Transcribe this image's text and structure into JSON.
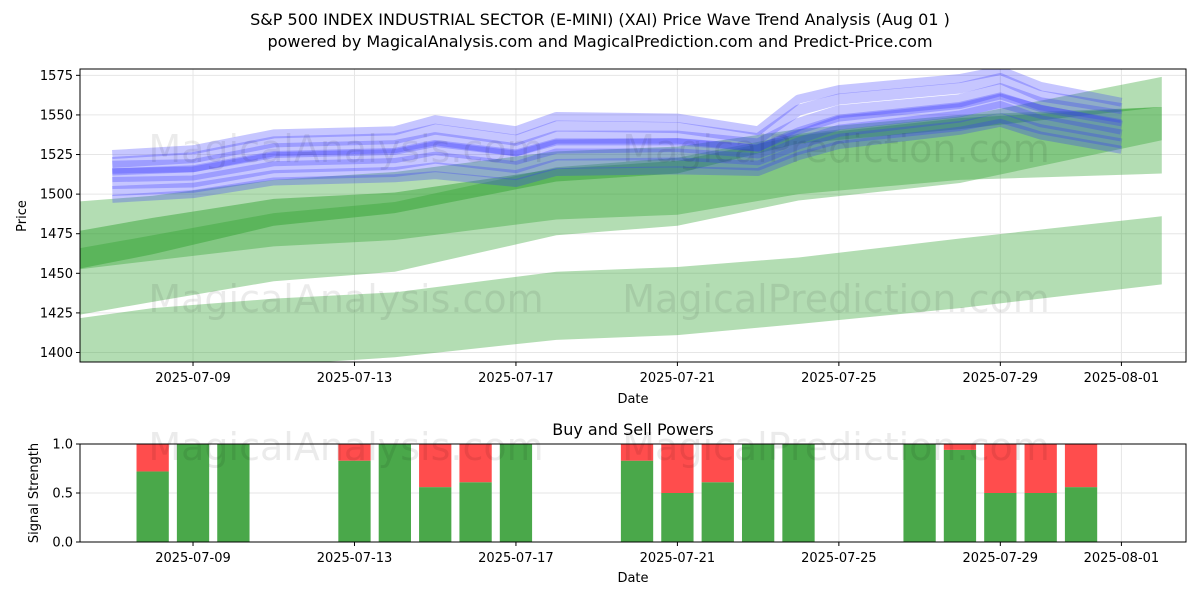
{
  "header": {
    "title_line1": "S&P 500 INDEX INDUSTRIAL SECTOR (E-MINI) (XAI) Price Wave Trend Analysis (Aug 01 )",
    "title_line2": "powered by MagicalAnalysis.com and MagicalPrediction.com and Predict-Price.com"
  },
  "watermarks": [
    "MagicalAnalysis.com",
    "MagicalPrediction.com"
  ],
  "colors": {
    "forecast_blue": "#3333ff",
    "band_green": "#2ca02c",
    "buy_green": "#4aa84a",
    "sell_red": "#ff4d4d"
  },
  "chart_data": [
    {
      "type": "area",
      "name": "price-wave",
      "xlabel": "Date",
      "ylabel": "Price",
      "xlim": [
        "2025-07-06",
        "2025-08-02"
      ],
      "ylim": [
        1394,
        1579
      ],
      "x_ticks": [
        "2025-07-09",
        "2025-07-13",
        "2025-07-17",
        "2025-07-21",
        "2025-07-25",
        "2025-07-29",
        "2025-08-01"
      ],
      "y_ticks": [
        1400,
        1425,
        1450,
        1475,
        1500,
        1525,
        1550,
        1575
      ],
      "grid": true,
      "green_bands": [
        {
          "start": "2025-07-06",
          "end": "2025-08-02",
          "x": [
            "2025-07-06",
            "2025-07-08",
            "2025-07-11",
            "2025-07-14",
            "2025-07-18",
            "2025-07-21",
            "2025-07-24",
            "2025-07-28",
            "2025-08-02"
          ],
          "lower": [
            1380,
            1386,
            1392,
            1397,
            1408,
            1411,
            1418,
            1428,
            1443
          ],
          "upper": [
            1421,
            1428,
            1434,
            1438,
            1451,
            1454,
            1460,
            1472,
            1486
          ]
        },
        {
          "start": "2025-07-06",
          "end": "2025-08-02",
          "x": [
            "2025-07-06",
            "2025-07-08",
            "2025-07-11",
            "2025-07-14",
            "2025-07-18",
            "2025-07-21",
            "2025-07-24",
            "2025-07-28",
            "2025-08-02"
          ],
          "lower": [
            1423,
            1432,
            1445,
            1451,
            1474,
            1480,
            1496,
            1507,
            1534
          ],
          "upper": [
            1465,
            1474,
            1488,
            1495,
            1517,
            1523,
            1538,
            1549,
            1574
          ]
        },
        {
          "start": "2025-07-06",
          "end": "2025-08-02",
          "x": [
            "2025-07-06",
            "2025-07-08",
            "2025-07-11",
            "2025-07-14",
            "2025-07-18",
            "2025-07-21",
            "2025-07-24",
            "2025-07-28",
            "2025-08-02"
          ],
          "lower": [
            1452,
            1458,
            1467,
            1471,
            1484,
            1487,
            1500,
            1509,
            1513
          ],
          "upper": [
            1495,
            1499,
            1509,
            1514,
            1527,
            1530,
            1541,
            1550,
            1555
          ]
        },
        {
          "start": "2025-07-06",
          "end": "2025-08-02",
          "x": [
            "2025-07-06",
            "2025-07-08",
            "2025-07-11",
            "2025-07-14",
            "2025-07-18",
            "2025-07-21",
            "2025-07-24",
            "2025-07-28",
            "2025-08-02"
          ],
          "lower": [
            1452,
            1462,
            1480,
            1488,
            1508,
            1513,
            1532,
            1541,
            1555
          ],
          "upper": [
            1476,
            1485,
            1497,
            1501,
            1516,
            1521,
            1537,
            1548,
            1555
          ]
        }
      ],
      "forecast_paths": {
        "x": [
          "2025-07-07",
          "2025-07-09",
          "2025-07-11",
          "2025-07-14",
          "2025-07-15",
          "2025-07-17",
          "2025-07-18",
          "2025-07-21",
          "2025-07-23",
          "2025-07-24",
          "2025-07-25",
          "2025-07-28",
          "2025-07-29",
          "2025-07-30",
          "2025-08-01"
        ],
        "paths": [
          [
            1512,
            1513,
            1522,
            1524,
            1529,
            1523,
            1530,
            1531,
            1527,
            1536,
            1545,
            1553,
            1559,
            1552,
            1542
          ],
          [
            1517,
            1518,
            1528,
            1530,
            1535,
            1528,
            1536,
            1536,
            1531,
            1544,
            1552,
            1559,
            1566,
            1557,
            1549
          ],
          [
            1507,
            1508,
            1517,
            1519,
            1523,
            1517,
            1525,
            1525,
            1522,
            1532,
            1540,
            1549,
            1555,
            1546,
            1537
          ],
          [
            1520,
            1523,
            1533,
            1535,
            1541,
            1534,
            1543,
            1542,
            1535,
            1553,
            1560,
            1567,
            1573,
            1562,
            1554
          ],
          [
            1502,
            1504,
            1512,
            1514,
            1517,
            1512,
            1519,
            1520,
            1518,
            1528,
            1535,
            1543,
            1548,
            1541,
            1532
          ],
          [
            1525,
            1528,
            1538,
            1540,
            1547,
            1540,
            1549,
            1548,
            1540,
            1560,
            1566,
            1573,
            1578,
            1568,
            1558
          ],
          [
            1497,
            1500,
            1508,
            1510,
            1512,
            1507,
            1514,
            1515,
            1514,
            1524,
            1531,
            1540,
            1545,
            1537,
            1528
          ],
          [
            1514,
            1516,
            1525,
            1527,
            1532,
            1526,
            1533,
            1533,
            1529,
            1540,
            1548,
            1556,
            1562,
            1554,
            1545
          ]
        ]
      }
    },
    {
      "type": "bar",
      "name": "buy-sell-powers",
      "title": "Buy and Sell Powers",
      "xlabel": "Date",
      "ylabel": "Signal Strength",
      "xlim": [
        "2025-07-06",
        "2025-08-02"
      ],
      "ylim": [
        0,
        1
      ],
      "x_ticks": [
        "2025-07-09",
        "2025-07-13",
        "2025-07-17",
        "2025-07-21",
        "2025-07-25",
        "2025-07-29",
        "2025-08-01"
      ],
      "y_ticks": [
        "0.0",
        "0.5",
        "1.0"
      ],
      "grid": true,
      "dates": [
        "2025-07-08",
        "2025-07-09",
        "2025-07-10",
        "2025-07-13",
        "2025-07-14",
        "2025-07-15",
        "2025-07-16",
        "2025-07-17",
        "2025-07-20",
        "2025-07-21",
        "2025-07-22",
        "2025-07-23",
        "2025-07-24",
        "2025-07-27",
        "2025-07-28",
        "2025-07-29",
        "2025-07-30",
        "2025-07-31"
      ],
      "buy": [
        0.72,
        1.0,
        1.0,
        0.83,
        1.0,
        0.56,
        0.61,
        1.0,
        0.83,
        0.5,
        0.61,
        1.0,
        1.0,
        1.0,
        0.94,
        0.5,
        0.5,
        0.56
      ]
    }
  ]
}
